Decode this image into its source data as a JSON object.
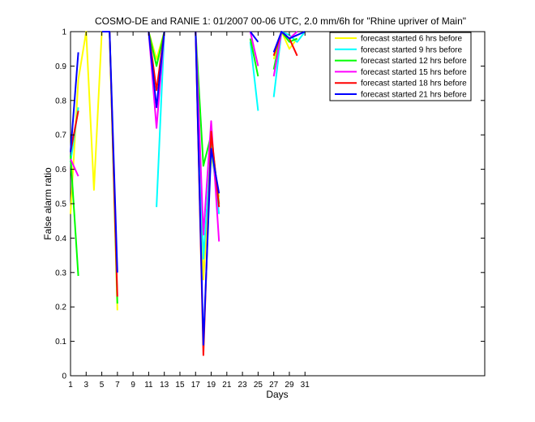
{
  "chart_data": {
    "type": "line",
    "title": "COSMO-DE and RANIE 1: 01/2007 00-06 UTC, 2.0 mm/6h for \"Rhine upriver of Main\"",
    "xlabel": "Days",
    "ylabel": "False alarm ratio",
    "xlim": [
      1,
      54
    ],
    "ylim": [
      0,
      1
    ],
    "xticks": [
      1,
      3,
      5,
      7,
      9,
      11,
      13,
      15,
      17,
      19,
      21,
      23,
      25,
      27,
      29,
      31
    ],
    "yticks": [
      0,
      0.1,
      0.2,
      0.3,
      0.4,
      0.5,
      0.6,
      0.7,
      0.8,
      0.9,
      1
    ],
    "ytick_labels": [
      "0",
      "0.1",
      "0.2",
      "0.3",
      "0.4",
      "0.5",
      "0.6",
      "0.7",
      "0.8",
      "0.9",
      "1"
    ],
    "grid": false,
    "legend_position": "top-right",
    "series": [
      {
        "name": "forecast started 6 hrs before",
        "color": "#ffff00",
        "segments": [
          [
            [
              1,
              0.47
            ],
            [
              2,
              0.86
            ],
            [
              3,
              1.0
            ],
            [
              4,
              0.54
            ],
            [
              5,
              1.0
            ],
            [
              6,
              1.0
            ],
            [
              7,
              0.19
            ]
          ],
          [
            [
              11,
              1.0
            ],
            [
              12,
              0.92
            ],
            [
              13,
              1.0
            ]
          ],
          [
            [
              17,
              1.0
            ],
            [
              18,
              0.28
            ],
            [
              19,
              0.64
            ],
            [
              20,
              0.52
            ]
          ],
          [
            [
              27,
              0.92
            ],
            [
              28,
              1.0
            ],
            [
              29,
              0.95
            ],
            [
              30,
              0.98
            ]
          ]
        ]
      },
      {
        "name": "forecast started 9 hrs before",
        "color": "#00ffff",
        "segments": [
          [
            [
              1,
              0.62
            ],
            [
              2,
              0.78
            ]
          ],
          [
            [
              12,
              0.49
            ],
            [
              13,
              1.0
            ]
          ],
          [
            [
              17,
              1.0
            ],
            [
              18,
              0.34
            ],
            [
              19,
              0.67
            ],
            [
              20,
              0.47
            ]
          ],
          [
            [
              24,
              0.97
            ],
            [
              25,
              0.77
            ]
          ],
          [
            [
              27,
              0.81
            ],
            [
              28,
              1.0
            ],
            [
              29,
              0.99
            ],
            [
              30,
              0.97
            ],
            [
              31,
              1.0
            ]
          ]
        ]
      },
      {
        "name": "forecast started 12 hrs before",
        "color": "#00ff00",
        "segments": [
          [
            [
              1,
              0.64
            ],
            [
              2,
              0.29
            ]
          ],
          [
            [
              6,
              1.0
            ],
            [
              7,
              0.21
            ]
          ],
          [
            [
              11,
              1.0
            ],
            [
              12,
              0.9
            ],
            [
              13,
              1.0
            ]
          ],
          [
            [
              17,
              1.0
            ],
            [
              18,
              0.61
            ],
            [
              19,
              0.7
            ],
            [
              20,
              0.5
            ]
          ],
          [
            [
              24,
              0.98
            ],
            [
              25,
              0.87
            ]
          ],
          [
            [
              27,
              0.89
            ],
            [
              28,
              1.0
            ],
            [
              29,
              0.97
            ],
            [
              30,
              0.98
            ]
          ]
        ]
      },
      {
        "name": "forecast started 15 hrs before",
        "color": "#ff00ff",
        "segments": [
          [
            [
              1,
              0.63
            ],
            [
              2,
              0.58
            ]
          ],
          [
            [
              11,
              1.0
            ],
            [
              12,
              0.72
            ],
            [
              13,
              1.0
            ]
          ],
          [
            [
              17,
              1.0
            ],
            [
              18,
              0.41
            ],
            [
              19,
              0.74
            ],
            [
              20,
              0.39
            ]
          ],
          [
            [
              24,
              1.0
            ],
            [
              25,
              0.9
            ]
          ],
          [
            [
              27,
              0.87
            ],
            [
              28,
              1.0
            ],
            [
              29,
              0.98
            ],
            [
              30,
              1.0
            ]
          ]
        ]
      },
      {
        "name": "forecast started 18 hrs before",
        "color": "#ff0000",
        "segments": [
          [
            [
              1,
              0.65
            ],
            [
              2,
              0.77
            ]
          ],
          [
            [
              6,
              1.0
            ],
            [
              7,
              0.23
            ]
          ],
          [
            [
              11,
              1.0
            ],
            [
              12,
              0.83
            ],
            [
              13,
              1.0
            ]
          ],
          [
            [
              17,
              1.0
            ],
            [
              18,
              0.06
            ],
            [
              19,
              0.71
            ],
            [
              20,
              0.49
            ]
          ],
          [
            [
              27,
              0.93
            ],
            [
              28,
              1.0
            ],
            [
              29,
              0.98
            ],
            [
              30,
              0.93
            ]
          ]
        ]
      },
      {
        "name": "forecast started 21 hrs before",
        "color": "#0000ff",
        "segments": [
          [
            [
              1,
              0.65
            ],
            [
              2,
              0.94
            ]
          ],
          [
            [
              5,
              1.0
            ],
            [
              6,
              1.0
            ],
            [
              7,
              0.3
            ]
          ],
          [
            [
              11,
              1.0
            ],
            [
              12,
              0.78
            ],
            [
              13,
              1.0
            ]
          ],
          [
            [
              17,
              1.0
            ],
            [
              18,
              0.09
            ],
            [
              19,
              0.66
            ],
            [
              20,
              0.53
            ]
          ],
          [
            [
              24,
              1.0
            ],
            [
              25,
              0.97
            ]
          ],
          [
            [
              27,
              0.94
            ],
            [
              28,
              1.0
            ],
            [
              29,
              0.98
            ],
            [
              30,
              0.99
            ],
            [
              31,
              1.0
            ]
          ]
        ]
      }
    ]
  }
}
